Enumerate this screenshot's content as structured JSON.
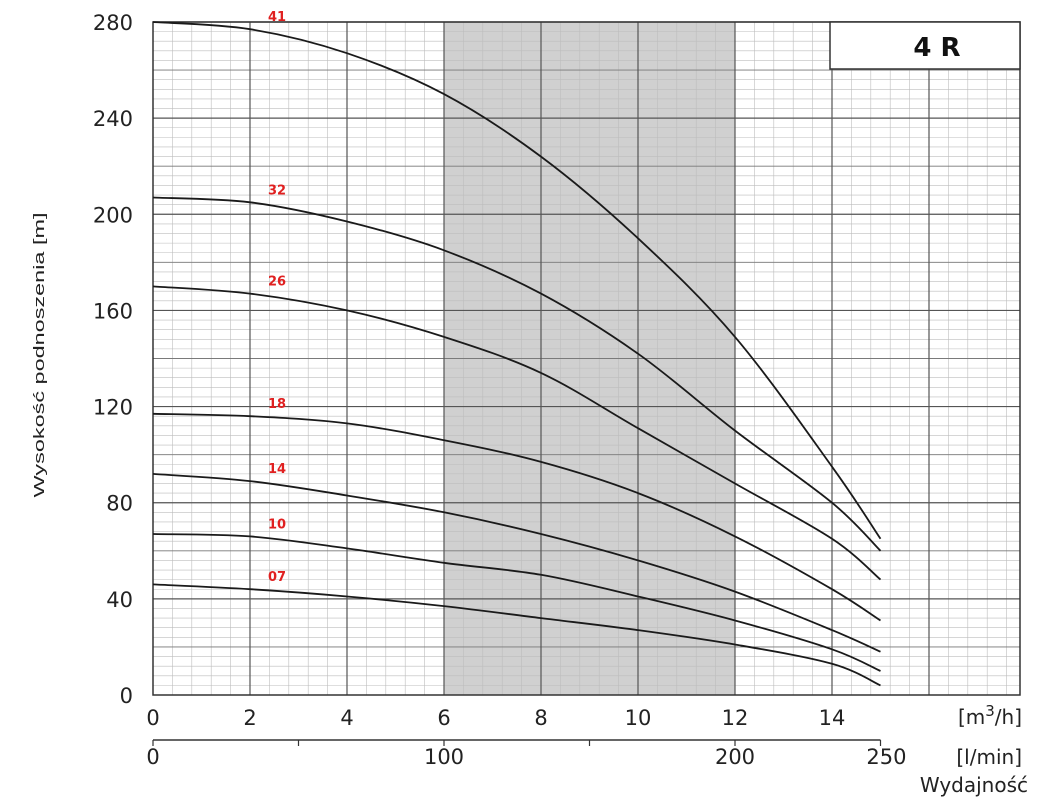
{
  "chart_data": {
    "type": "line",
    "title": "4 R",
    "ylabel": "Wysokość podnoszenia [m]",
    "xlabel": "Wydajność",
    "x_unit_primary": "[m3/h]",
    "x_unit_primary_base": "[m",
    "x_unit_primary_sup": "3",
    "x_unit_primary_tail": "/h]",
    "x_unit_secondary": "[l/min]",
    "xlim": [
      0,
      18
    ],
    "ylim": [
      0,
      280
    ],
    "x_ticks": [
      "0",
      "2",
      "4",
      "6",
      "8",
      "10",
      "12",
      "14"
    ],
    "y_ticks": [
      "0",
      "40",
      "80",
      "120",
      "160",
      "200",
      "240",
      "280"
    ],
    "x2_ticks": [
      "0",
      "100",
      "200",
      "250"
    ],
    "x2_tick_values": [
      0,
      100,
      200,
      250
    ],
    "highlight_x_range": [
      6,
      12
    ],
    "grid": true,
    "series": [
      {
        "name": "41",
        "x": [
          0,
          2,
          4,
          6,
          8,
          10,
          12,
          14,
          15
        ],
        "y": [
          280,
          277,
          267,
          250,
          224,
          190,
          149,
          95,
          65
        ]
      },
      {
        "name": "32",
        "x": [
          0,
          2,
          4,
          6,
          8,
          10,
          12,
          14,
          15
        ],
        "y": [
          207,
          205,
          197,
          185,
          167,
          142,
          110,
          80,
          60
        ]
      },
      {
        "name": "26",
        "x": [
          0,
          2,
          4,
          6,
          8,
          10,
          12,
          14,
          15
        ],
        "y": [
          170,
          167,
          160,
          149,
          134,
          111,
          88,
          65,
          48
        ]
      },
      {
        "name": "18",
        "x": [
          0,
          2,
          4,
          6,
          8,
          10,
          12,
          14,
          15
        ],
        "y": [
          117,
          116,
          113,
          106,
          97,
          84,
          66,
          44,
          31
        ]
      },
      {
        "name": "14",
        "x": [
          0,
          2,
          4,
          6,
          8,
          10,
          12,
          14,
          15
        ],
        "y": [
          92,
          89,
          83,
          76,
          67,
          56,
          43,
          27,
          18
        ]
      },
      {
        "name": "10",
        "x": [
          0,
          2,
          4,
          6,
          8,
          10,
          12,
          14,
          15
        ],
        "y": [
          67,
          66,
          61,
          55,
          50,
          41,
          31,
          19,
          10
        ]
      },
      {
        "name": "07",
        "x": [
          0,
          2,
          4,
          6,
          8,
          10,
          12,
          14,
          15
        ],
        "y": [
          46,
          44,
          41,
          37,
          32,
          27,
          21,
          13,
          4
        ]
      }
    ]
  }
}
